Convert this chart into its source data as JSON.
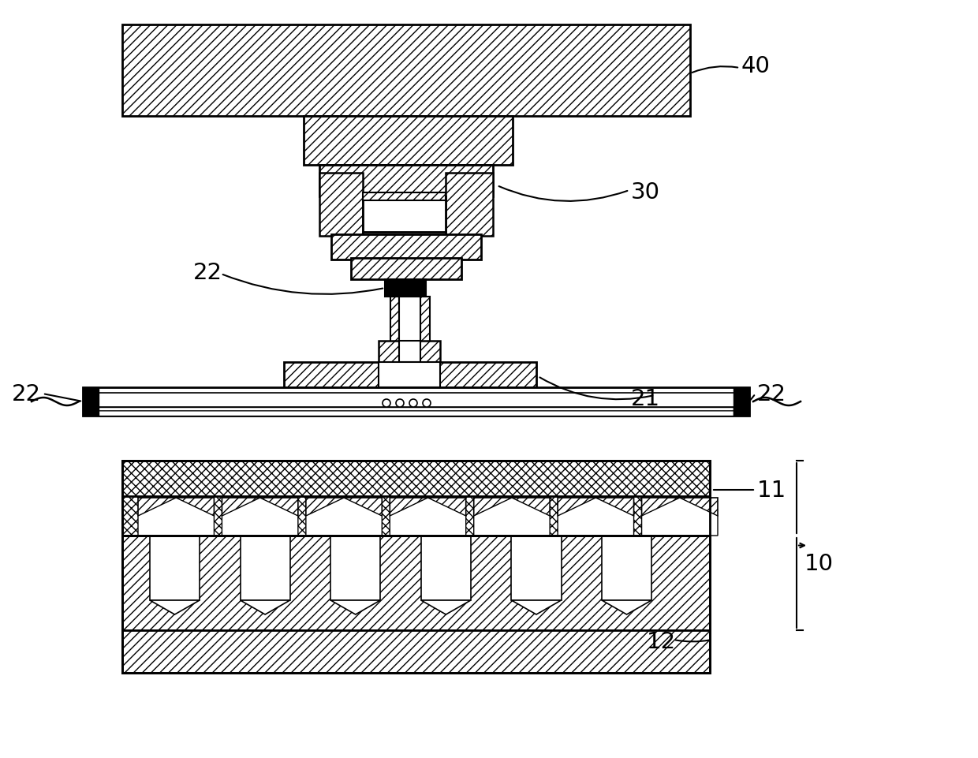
{
  "bg_color": "#ffffff",
  "line_color": "#000000",
  "label_40": "40",
  "label_30": "30",
  "label_22a": "22",
  "label_22b": "22",
  "label_22c": "22",
  "label_21": "21",
  "label_11": "11",
  "label_12": "12",
  "label_10": "10",
  "fig_w": 12.4,
  "fig_h": 9.62,
  "dpi": 100
}
